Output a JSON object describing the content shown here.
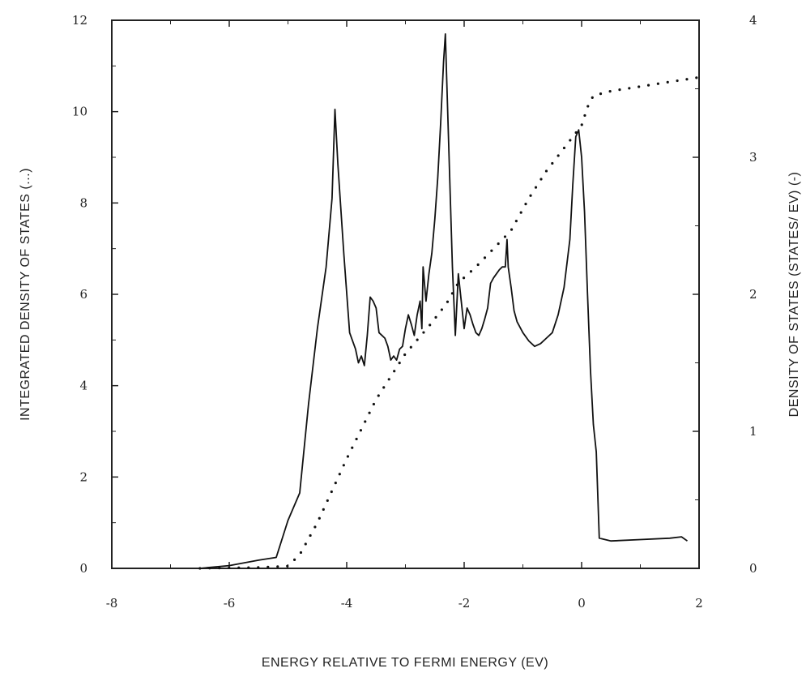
{
  "chart_data": {
    "type": "line",
    "title": "",
    "xlabel": "ENERGY RELATIVE TO FERMI ENERGY (EV)",
    "ylabel_left": "INTEGRATED DENSITY OF STATES (...)",
    "ylabel_right": "DENSITY OF STATES (STATES/ EV) (-)",
    "xlim": [
      -8,
      2
    ],
    "ylim_left": [
      0,
      12
    ],
    "ylim_right": [
      0,
      4
    ],
    "x_ticks": [
      "-8",
      "-6",
      "-4",
      "-2",
      "0",
      "2"
    ],
    "y_ticks_left": [
      "0",
      "2",
      "4",
      "6",
      "8",
      "10",
      "12"
    ],
    "y_ticks_right": [
      "0",
      "1",
      "2",
      "3",
      "4"
    ],
    "grid": false,
    "series": [
      {
        "axis": "right",
        "style": "solid",
        "x": [
          -6.5,
          -6.0,
          -5.5,
          -5.2,
          -5.0,
          -4.8,
          -4.65,
          -4.5,
          -4.35,
          -4.25,
          -4.2,
          -4.15,
          -4.05,
          -3.95,
          -3.85,
          -3.8,
          -3.75,
          -3.7,
          -3.65,
          -3.6,
          -3.55,
          -3.5,
          -3.45,
          -3.4,
          -3.35,
          -3.3,
          -3.25,
          -3.2,
          -3.15,
          -3.1,
          -3.05,
          -3.0,
          -2.95,
          -2.9,
          -2.85,
          -2.8,
          -2.75,
          -2.72,
          -2.7,
          -2.65,
          -2.6,
          -2.55,
          -2.5,
          -2.45,
          -2.4,
          -2.35,
          -2.32,
          -2.3,
          -2.25,
          -2.2,
          -2.15,
          -2.1,
          -2.05,
          -2.0,
          -1.95,
          -1.9,
          -1.85,
          -1.8,
          -1.75,
          -1.7,
          -1.65,
          -1.6,
          -1.55,
          -1.5,
          -1.45,
          -1.4,
          -1.35,
          -1.3,
          -1.27,
          -1.25,
          -1.2,
          -1.15,
          -1.1,
          -1.0,
          -0.9,
          -0.8,
          -0.7,
          -0.6,
          -0.5,
          -0.4,
          -0.3,
          -0.2,
          -0.15,
          -0.1,
          -0.05,
          0.0,
          0.05,
          0.1,
          0.15,
          0.2,
          0.25,
          0.3,
          0.5,
          1.0,
          1.5,
          1.7,
          1.8
        ],
        "values": [
          0.0,
          0.02,
          0.06,
          0.08,
          0.35,
          0.55,
          1.2,
          1.75,
          2.2,
          2.7,
          3.35,
          2.95,
          2.3,
          1.72,
          1.6,
          1.5,
          1.55,
          1.48,
          1.7,
          1.98,
          1.95,
          1.9,
          1.72,
          1.7,
          1.68,
          1.62,
          1.52,
          1.55,
          1.52,
          1.6,
          1.62,
          1.75,
          1.85,
          1.78,
          1.7,
          1.85,
          1.95,
          1.75,
          2.2,
          1.95,
          2.15,
          2.3,
          2.55,
          2.85,
          3.25,
          3.7,
          3.9,
          3.6,
          2.9,
          2.2,
          1.7,
          2.15,
          1.95,
          1.75,
          1.9,
          1.85,
          1.78,
          1.72,
          1.7,
          1.75,
          1.82,
          1.9,
          2.08,
          2.12,
          2.15,
          2.18,
          2.2,
          2.2,
          2.4,
          2.2,
          2.05,
          1.88,
          1.8,
          1.72,
          1.66,
          1.62,
          1.64,
          1.68,
          1.72,
          1.85,
          2.05,
          2.4,
          2.8,
          3.15,
          3.2,
          3.0,
          2.6,
          2.0,
          1.45,
          1.05,
          0.85,
          0.22,
          0.2,
          0.21,
          0.22,
          0.23,
          0.2
        ]
      },
      {
        "axis": "left",
        "style": "dotted",
        "x": [
          -6.5,
          -6.0,
          -5.5,
          -5.0,
          -4.8,
          -4.5,
          -4.0,
          -3.5,
          -3.0,
          -2.6,
          -2.3,
          -2.1,
          -1.8,
          -1.5,
          -1.2,
          -0.9,
          -0.6,
          -0.3,
          0.0,
          0.1,
          0.2,
          0.5,
          1.0,
          1.5,
          2.0
        ],
        "values": [
          0.0,
          0.01,
          0.02,
          0.05,
          0.3,
          1.0,
          2.4,
          3.7,
          4.7,
          5.3,
          5.8,
          6.25,
          6.6,
          7.0,
          7.4,
          8.1,
          8.7,
          9.2,
          9.7,
          10.1,
          10.35,
          10.45,
          10.55,
          10.65,
          10.75
        ]
      }
    ]
  }
}
